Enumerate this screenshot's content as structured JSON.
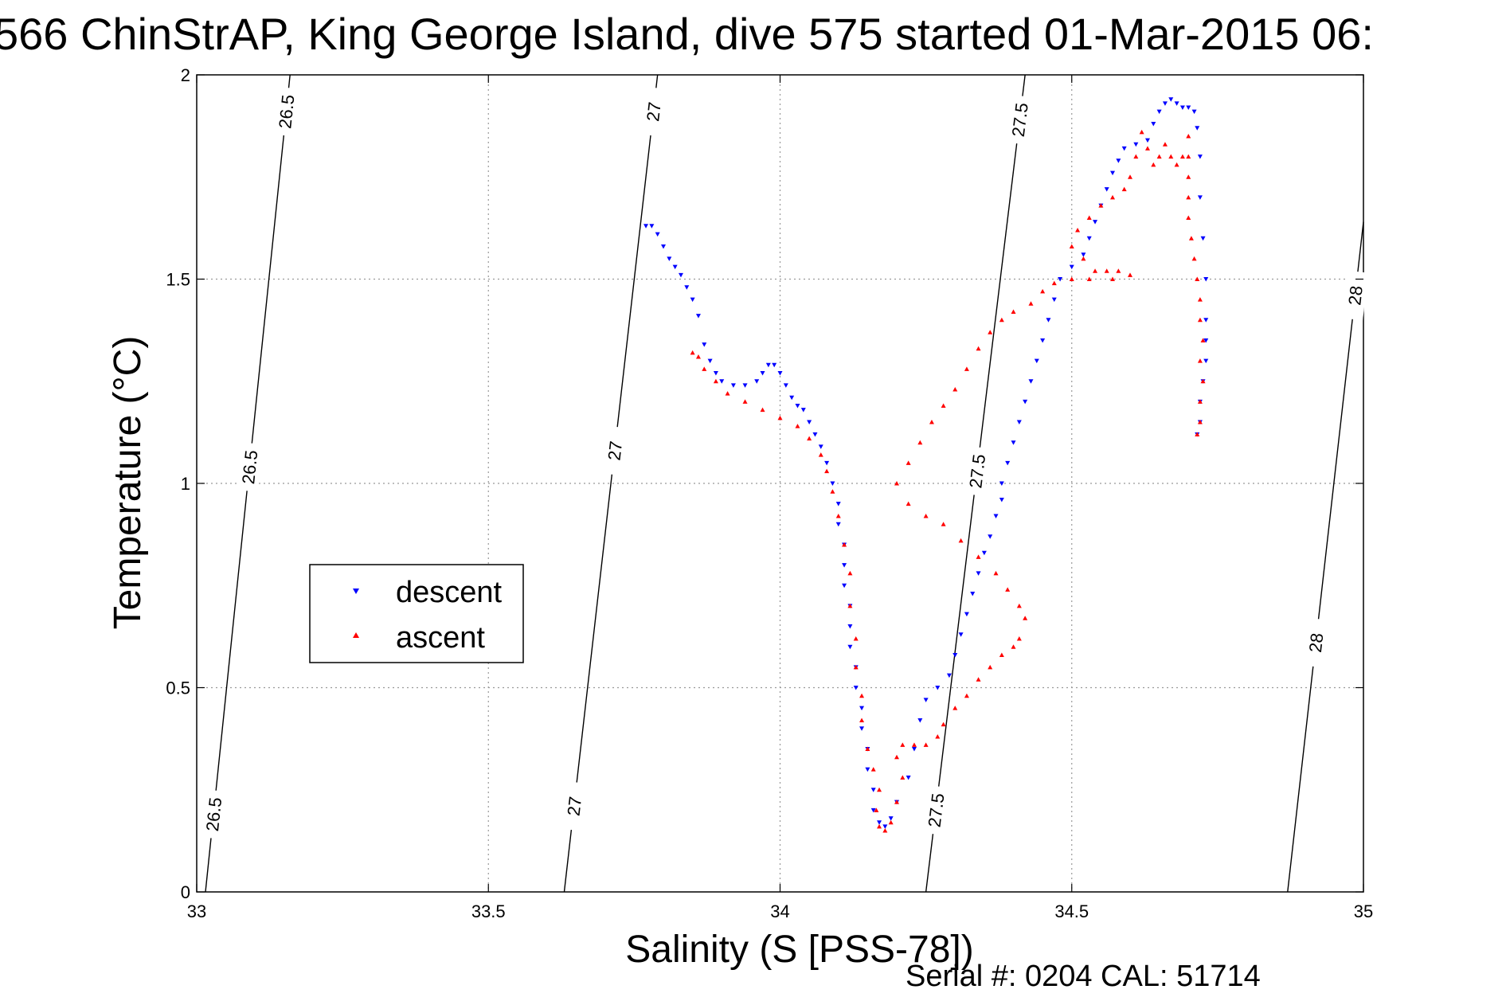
{
  "title": "566 ChinStrAP, King George Island, dive 575 started 01-Mar-2015 06:",
  "footer": "Serial #: 0204  CAL: 51714",
  "chart_data": {
    "type": "scatter",
    "title": "566 ChinStrAP, King George Island, dive 575 started 01-Mar-2015 06:",
    "xlabel": "Salinity (S [PSS-78])",
    "ylabel": "Temperature (°C)",
    "xlim": [
      33,
      35
    ],
    "ylim": [
      0,
      2
    ],
    "xticks": [
      "33",
      "33.5",
      "34",
      "34.5",
      "35"
    ],
    "yticks": [
      "0",
      "0.5",
      "1",
      "1.5",
      "2"
    ],
    "grid": true,
    "legend_position": "left-middle",
    "density_contours": [
      {
        "label": "26.5",
        "line": [
          [
            33.015,
            0
          ],
          [
            33.16,
            2
          ]
        ],
        "label_y": [
          0.19,
          1.04,
          1.91
        ]
      },
      {
        "label": "27",
        "line": [
          [
            33.63,
            0
          ],
          [
            33.79,
            2
          ]
        ],
        "label_y": [
          0.21,
          1.08,
          1.91
        ]
      },
      {
        "label": "27.5",
        "line": [
          [
            34.25,
            0
          ],
          [
            34.42,
            2
          ]
        ],
        "label_y": [
          0.2,
          1.03,
          1.89
        ]
      },
      {
        "label": "28",
        "line": [
          [
            34.87,
            0
          ],
          [
            35.0,
            1.64
          ]
        ],
        "label_y": [
          0.61,
          1.46
        ]
      }
    ],
    "series": [
      {
        "name": "descent",
        "color": "#0000ff",
        "marker": "triangle-down",
        "points": [
          [
            33.77,
            1.63
          ],
          [
            33.78,
            1.63
          ],
          [
            33.79,
            1.61
          ],
          [
            33.8,
            1.58
          ],
          [
            33.81,
            1.55
          ],
          [
            33.82,
            1.53
          ],
          [
            33.83,
            1.51
          ],
          [
            33.84,
            1.48
          ],
          [
            33.85,
            1.45
          ],
          [
            33.86,
            1.41
          ],
          [
            33.87,
            1.34
          ],
          [
            33.88,
            1.3
          ],
          [
            33.89,
            1.27
          ],
          [
            33.9,
            1.25
          ],
          [
            33.92,
            1.24
          ],
          [
            33.94,
            1.24
          ],
          [
            33.96,
            1.25
          ],
          [
            33.97,
            1.27
          ],
          [
            33.98,
            1.29
          ],
          [
            33.99,
            1.29
          ],
          [
            34.0,
            1.27
          ],
          [
            34.01,
            1.24
          ],
          [
            34.02,
            1.21
          ],
          [
            34.03,
            1.19
          ],
          [
            34.04,
            1.18
          ],
          [
            34.05,
            1.15
          ],
          [
            34.06,
            1.12
          ],
          [
            34.07,
            1.09
          ],
          [
            34.08,
            1.05
          ],
          [
            34.09,
            1.0
          ],
          [
            34.1,
            0.95
          ],
          [
            34.1,
            0.9
          ],
          [
            34.11,
            0.85
          ],
          [
            34.11,
            0.8
          ],
          [
            34.11,
            0.75
          ],
          [
            34.12,
            0.7
          ],
          [
            34.12,
            0.65
          ],
          [
            34.12,
            0.6
          ],
          [
            34.13,
            0.55
          ],
          [
            34.13,
            0.5
          ],
          [
            34.14,
            0.45
          ],
          [
            34.14,
            0.4
          ],
          [
            34.15,
            0.35
          ],
          [
            34.15,
            0.3
          ],
          [
            34.16,
            0.25
          ],
          [
            34.16,
            0.2
          ],
          [
            34.17,
            0.17
          ],
          [
            34.18,
            0.16
          ],
          [
            34.19,
            0.18
          ],
          [
            34.2,
            0.22
          ],
          [
            34.22,
            0.28
          ],
          [
            34.23,
            0.35
          ],
          [
            34.24,
            0.42
          ],
          [
            34.25,
            0.47
          ],
          [
            34.27,
            0.5
          ],
          [
            34.29,
            0.53
          ],
          [
            34.3,
            0.58
          ],
          [
            34.31,
            0.63
          ],
          [
            34.32,
            0.68
          ],
          [
            34.33,
            0.73
          ],
          [
            34.34,
            0.78
          ],
          [
            34.35,
            0.83
          ],
          [
            34.36,
            0.87
          ],
          [
            34.37,
            0.92
          ],
          [
            34.38,
            0.96
          ],
          [
            34.38,
            1.0
          ],
          [
            34.39,
            1.05
          ],
          [
            34.4,
            1.1
          ],
          [
            34.41,
            1.15
          ],
          [
            34.42,
            1.2
          ],
          [
            34.43,
            1.25
          ],
          [
            34.44,
            1.3
          ],
          [
            34.45,
            1.35
          ],
          [
            34.46,
            1.4
          ],
          [
            34.47,
            1.45
          ],
          [
            34.48,
            1.5
          ],
          [
            34.5,
            1.53
          ],
          [
            34.52,
            1.56
          ],
          [
            34.53,
            1.6
          ],
          [
            34.54,
            1.64
          ],
          [
            34.55,
            1.68
          ],
          [
            34.56,
            1.72
          ],
          [
            34.57,
            1.76
          ],
          [
            34.58,
            1.79
          ],
          [
            34.59,
            1.82
          ],
          [
            34.61,
            1.83
          ],
          [
            34.63,
            1.84
          ],
          [
            34.64,
            1.88
          ],
          [
            34.65,
            1.91
          ],
          [
            34.66,
            1.93
          ],
          [
            34.67,
            1.94
          ],
          [
            34.68,
            1.93
          ],
          [
            34.69,
            1.92
          ],
          [
            34.7,
            1.92
          ],
          [
            34.71,
            1.91
          ],
          [
            34.715,
            1.87
          ],
          [
            34.72,
            1.8
          ],
          [
            34.72,
            1.7
          ],
          [
            34.725,
            1.6
          ],
          [
            34.73,
            1.5
          ],
          [
            34.73,
            1.4
          ],
          [
            34.73,
            1.35
          ],
          [
            34.73,
            1.3
          ],
          [
            34.725,
            1.25
          ],
          [
            34.72,
            1.2
          ],
          [
            34.72,
            1.15
          ],
          [
            34.715,
            1.12
          ]
        ]
      },
      {
        "name": "ascent",
        "color": "#ff0000",
        "marker": "triangle-up",
        "points": [
          [
            34.715,
            1.12
          ],
          [
            34.72,
            1.15
          ],
          [
            34.72,
            1.2
          ],
          [
            34.725,
            1.25
          ],
          [
            34.72,
            1.3
          ],
          [
            34.725,
            1.35
          ],
          [
            34.72,
            1.4
          ],
          [
            34.72,
            1.45
          ],
          [
            34.715,
            1.5
          ],
          [
            34.71,
            1.55
          ],
          [
            34.705,
            1.6
          ],
          [
            34.7,
            1.65
          ],
          [
            34.7,
            1.7
          ],
          [
            34.7,
            1.75
          ],
          [
            34.7,
            1.8
          ],
          [
            34.7,
            1.85
          ],
          [
            34.69,
            1.8
          ],
          [
            34.68,
            1.78
          ],
          [
            34.67,
            1.8
          ],
          [
            34.66,
            1.83
          ],
          [
            34.65,
            1.8
          ],
          [
            34.64,
            1.78
          ],
          [
            34.63,
            1.82
          ],
          [
            34.62,
            1.86
          ],
          [
            34.61,
            1.8
          ],
          [
            34.6,
            1.75
          ],
          [
            34.59,
            1.72
          ],
          [
            34.57,
            1.7
          ],
          [
            34.55,
            1.68
          ],
          [
            34.53,
            1.65
          ],
          [
            34.51,
            1.62
          ],
          [
            34.5,
            1.58
          ],
          [
            34.52,
            1.55
          ],
          [
            34.54,
            1.52
          ],
          [
            34.56,
            1.52
          ],
          [
            34.58,
            1.52
          ],
          [
            34.6,
            1.51
          ],
          [
            34.57,
            1.5
          ],
          [
            34.53,
            1.5
          ],
          [
            34.5,
            1.5
          ],
          [
            34.47,
            1.49
          ],
          [
            34.45,
            1.47
          ],
          [
            34.43,
            1.44
          ],
          [
            34.4,
            1.42
          ],
          [
            34.38,
            1.4
          ],
          [
            34.36,
            1.37
          ],
          [
            34.34,
            1.33
          ],
          [
            34.32,
            1.28
          ],
          [
            34.3,
            1.23
          ],
          [
            34.28,
            1.19
          ],
          [
            34.26,
            1.15
          ],
          [
            34.24,
            1.1
          ],
          [
            34.22,
            1.05
          ],
          [
            34.2,
            1.0
          ],
          [
            34.22,
            0.95
          ],
          [
            34.25,
            0.92
          ],
          [
            34.28,
            0.9
          ],
          [
            34.31,
            0.86
          ],
          [
            34.34,
            0.82
          ],
          [
            34.37,
            0.78
          ],
          [
            34.39,
            0.74
          ],
          [
            34.41,
            0.7
          ],
          [
            34.42,
            0.67
          ],
          [
            34.41,
            0.62
          ],
          [
            34.4,
            0.6
          ],
          [
            34.38,
            0.58
          ],
          [
            34.36,
            0.55
          ],
          [
            34.34,
            0.52
          ],
          [
            34.32,
            0.48
          ],
          [
            34.3,
            0.45
          ],
          [
            34.28,
            0.41
          ],
          [
            34.27,
            0.38
          ],
          [
            34.25,
            0.36
          ],
          [
            34.23,
            0.36
          ],
          [
            34.21,
            0.36
          ],
          [
            34.2,
            0.33
          ],
          [
            34.21,
            0.28
          ],
          [
            34.2,
            0.22
          ],
          [
            34.19,
            0.17
          ],
          [
            34.18,
            0.15
          ],
          [
            34.17,
            0.16
          ],
          [
            34.165,
            0.2
          ],
          [
            34.17,
            0.25
          ],
          [
            34.16,
            0.3
          ],
          [
            34.15,
            0.35
          ],
          [
            34.14,
            0.42
          ],
          [
            34.14,
            0.48
          ],
          [
            34.13,
            0.55
          ],
          [
            34.13,
            0.62
          ],
          [
            34.12,
            0.7
          ],
          [
            34.12,
            0.78
          ],
          [
            34.11,
            0.85
          ],
          [
            34.1,
            0.92
          ],
          [
            34.09,
            0.98
          ],
          [
            34.08,
            1.03
          ],
          [
            34.07,
            1.07
          ],
          [
            34.05,
            1.11
          ],
          [
            34.03,
            1.14
          ],
          [
            34.0,
            1.16
          ],
          [
            33.97,
            1.18
          ],
          [
            33.94,
            1.2
          ],
          [
            33.91,
            1.22
          ],
          [
            33.89,
            1.25
          ],
          [
            33.87,
            1.28
          ],
          [
            33.86,
            1.31
          ],
          [
            33.85,
            1.32
          ]
        ]
      }
    ]
  }
}
